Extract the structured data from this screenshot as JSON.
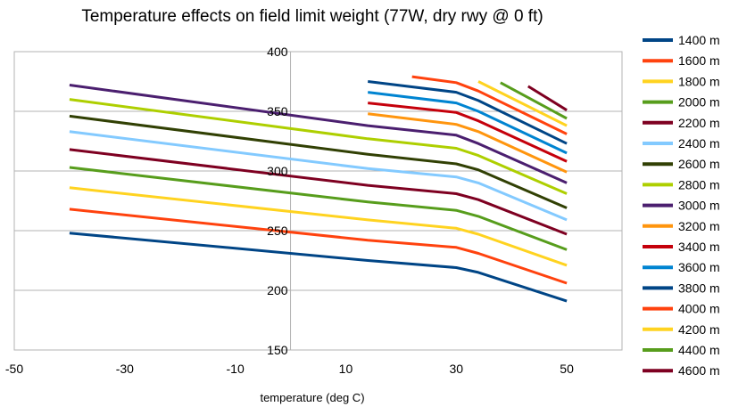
{
  "chart_data": {
    "type": "line",
    "title": "Temperature effects on field limit weight (77W, dry rwy @ 0 ft)",
    "xlabel": "temperature (deg C)",
    "ylabel": "",
    "xlim": [
      -50,
      60
    ],
    "ylim": [
      150,
      400
    ],
    "x_ticks": [
      "-50",
      "-30",
      "-10",
      "10",
      "30",
      "50"
    ],
    "y_ticks": [
      "150",
      "200",
      "250",
      "300",
      "350",
      "400"
    ],
    "grid": "horizontal",
    "legend_position": "right",
    "series": [
      {
        "name": "1400 m",
        "color": "#004586",
        "points": [
          [
            -40,
            248
          ],
          [
            14,
            225
          ],
          [
            30,
            219
          ],
          [
            34,
            215
          ],
          [
            50,
            191
          ]
        ]
      },
      {
        "name": "1600 m",
        "color": "#ff420e",
        "points": [
          [
            -40,
            268
          ],
          [
            14,
            242
          ],
          [
            30,
            236
          ],
          [
            34,
            231
          ],
          [
            50,
            206
          ]
        ]
      },
      {
        "name": "1800 m",
        "color": "#ffd320",
        "points": [
          [
            -40,
            286
          ],
          [
            14,
            259
          ],
          [
            30,
            252
          ],
          [
            34,
            247
          ],
          [
            50,
            221
          ]
        ]
      },
      {
        "name": "2000 m",
        "color": "#579d1c",
        "points": [
          [
            -40,
            303
          ],
          [
            14,
            274
          ],
          [
            30,
            267
          ],
          [
            34,
            262
          ],
          [
            50,
            234
          ]
        ]
      },
      {
        "name": "2200 m",
        "color": "#7e0021",
        "points": [
          [
            -40,
            318
          ],
          [
            14,
            288
          ],
          [
            30,
            281
          ],
          [
            34,
            276
          ],
          [
            50,
            247
          ]
        ]
      },
      {
        "name": "2400 m",
        "color": "#83caff",
        "points": [
          [
            -40,
            333
          ],
          [
            14,
            302
          ],
          [
            30,
            295
          ],
          [
            34,
            290
          ],
          [
            50,
            259
          ]
        ]
      },
      {
        "name": "2600 m",
        "color": "#314004",
        "points": [
          [
            -40,
            346
          ],
          [
            14,
            314
          ],
          [
            30,
            306
          ],
          [
            34,
            301
          ],
          [
            50,
            269
          ]
        ]
      },
      {
        "name": "2800 m",
        "color": "#aecf00",
        "points": [
          [
            -40,
            360
          ],
          [
            14,
            327
          ],
          [
            30,
            319
          ],
          [
            34,
            313
          ],
          [
            50,
            281
          ]
        ]
      },
      {
        "name": "3000 m",
        "color": "#4b1f6f",
        "points": [
          [
            -40,
            372
          ],
          [
            14,
            338
          ],
          [
            30,
            330
          ],
          [
            34,
            323
          ],
          [
            50,
            290
          ]
        ]
      },
      {
        "name": "3200 m",
        "color": "#ff950e",
        "points": [
          [
            14,
            348
          ],
          [
            30,
            339
          ],
          [
            34,
            333
          ],
          [
            50,
            299
          ]
        ]
      },
      {
        "name": "3400 m",
        "color": "#c5000b",
        "points": [
          [
            14,
            357
          ],
          [
            30,
            349
          ],
          [
            34,
            342
          ],
          [
            50,
            308
          ]
        ]
      },
      {
        "name": "3600 m",
        "color": "#0084d1",
        "points": [
          [
            14,
            366
          ],
          [
            30,
            357
          ],
          [
            34,
            350
          ],
          [
            50,
            315
          ]
        ]
      },
      {
        "name": "3800 m",
        "color": "#004586",
        "points": [
          [
            14,
            375
          ],
          [
            30,
            366
          ],
          [
            34,
            359
          ],
          [
            50,
            323
          ]
        ]
      },
      {
        "name": "4000 m",
        "color": "#ff420e",
        "points": [
          [
            22,
            379
          ],
          [
            30,
            374
          ],
          [
            34,
            367
          ],
          [
            50,
            331
          ]
        ]
      },
      {
        "name": "4200 m",
        "color": "#ffd320",
        "points": [
          [
            34,
            375
          ],
          [
            50,
            338
          ]
        ]
      },
      {
        "name": "4400 m",
        "color": "#579d1c",
        "points": [
          [
            38,
            374
          ],
          [
            50,
            344
          ]
        ]
      },
      {
        "name": "4600 m",
        "color": "#7e0021",
        "points": [
          [
            43,
            371
          ],
          [
            50,
            351
          ]
        ]
      }
    ]
  }
}
